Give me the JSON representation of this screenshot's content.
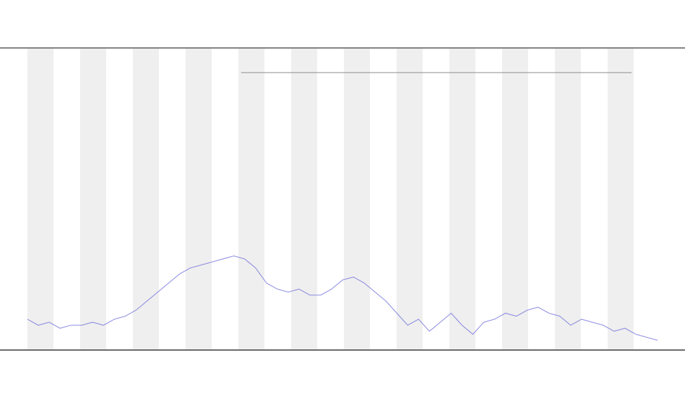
{
  "chart_data": {
    "type": "line",
    "series": [
      {
        "color": "#6b6bdc",
        "values": [
          10,
          8,
          9,
          7,
          8,
          8,
          9,
          8,
          10,
          11,
          13,
          16,
          19,
          22,
          25,
          27,
          28,
          29,
          30,
          31,
          30,
          27,
          22,
          20,
          19,
          20,
          18,
          18,
          20,
          23,
          24,
          22,
          19,
          16,
          12,
          8,
          10,
          6,
          9,
          12,
          8,
          5,
          9,
          10,
          12,
          11,
          13,
          14,
          12,
          11,
          8,
          10,
          9,
          8,
          6,
          7,
          5,
          4,
          3
        ]
      }
    ],
    "ylim": [
      0,
      100
    ]
  }
}
